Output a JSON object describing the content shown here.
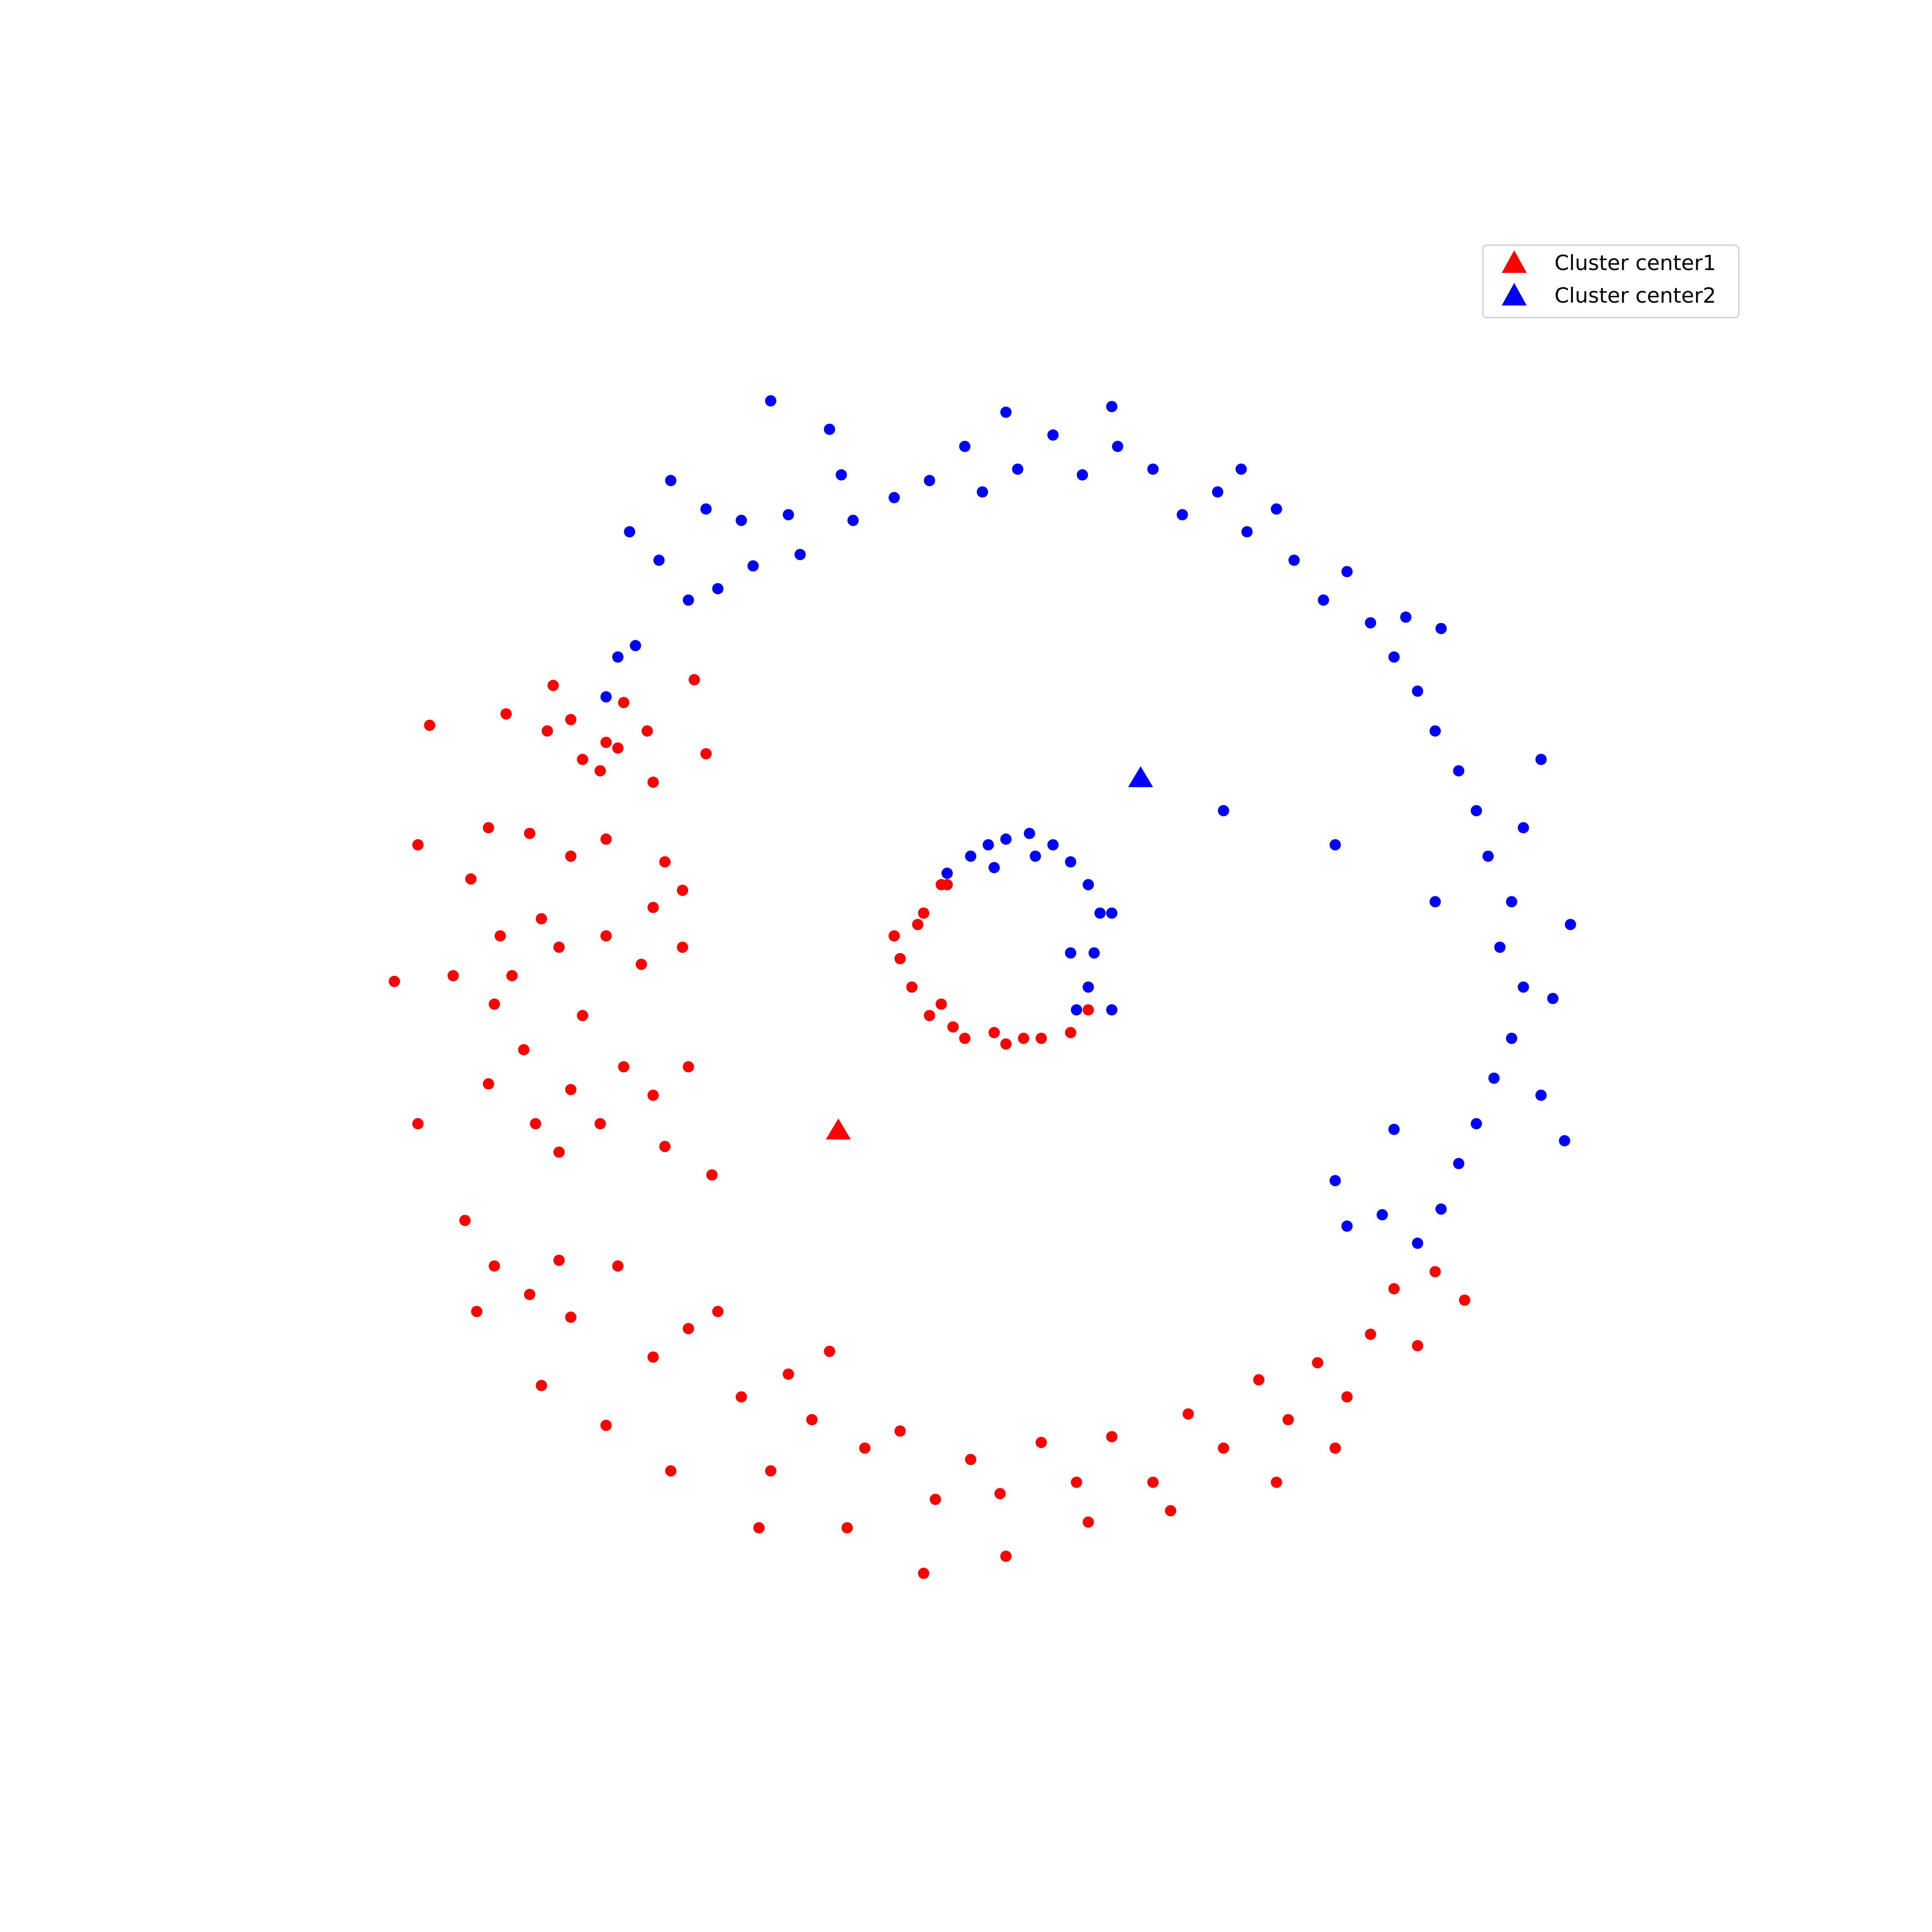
{
  "chart_data": {
    "type": "scatter",
    "title": "",
    "xlabel": "",
    "ylabel": "",
    "axes_visible": false,
    "grid": false,
    "legend_position": "top-right",
    "xlim": [
      -1.28,
      1.28
    ],
    "ylim": [
      -1.28,
      1.28
    ],
    "colors": {
      "cluster1": "#ff0000",
      "cluster2": "#0000ff"
    },
    "legend": [
      {
        "label": "Cluster center1",
        "color": "#ff0000",
        "marker": "triangle"
      },
      {
        "label": "Cluster center2",
        "color": "#0000ff",
        "marker": "triangle"
      }
    ],
    "centers": [
      {
        "name": "Cluster center1",
        "x": -0.265,
        "y": -0.283,
        "color": "#ff0000"
      },
      {
        "name": "Cluster center2",
        "x": 0.249,
        "y": 0.336,
        "color": "#0000ff"
      }
    ],
    "series": [
      {
        "color": "#ff0000",
        "marker": "dot",
        "points": [
          [
            -0.83,
            0.45
          ],
          [
            -0.75,
            0.5
          ],
          [
            -0.76,
            0.42
          ],
          [
            -0.7,
            0.37
          ],
          [
            -0.72,
            0.44
          ],
          [
            -0.66,
            0.4
          ],
          [
            -0.63,
            0.47
          ],
          [
            -0.64,
            0.39
          ],
          [
            -0.67,
            0.35
          ],
          [
            -0.58,
            0.33
          ],
          [
            -0.59,
            0.42
          ],
          [
            -0.51,
            0.51
          ],
          [
            -0.49,
            0.38
          ],
          [
            -0.86,
            0.25
          ],
          [
            -0.79,
            0.24
          ],
          [
            -0.72,
            0.2
          ],
          [
            -0.66,
            0.23
          ],
          [
            -0.56,
            0.19
          ],
          [
            -0.53,
            0.14
          ],
          [
            -0.58,
            0.11
          ],
          [
            -0.89,
            0.16
          ],
          [
            -0.84,
            0.06
          ],
          [
            -0.77,
            0.09
          ],
          [
            -0.82,
            -0.01
          ],
          [
            -0.74,
            0.04
          ],
          [
            -0.7,
            -0.08
          ],
          [
            -0.66,
            0.06
          ],
          [
            -0.6,
            0.01
          ],
          [
            -0.53,
            0.04
          ],
          [
            -0.92,
            -0.01
          ],
          [
            -0.85,
            -0.06
          ],
          [
            -0.8,
            -0.14
          ],
          [
            -0.86,
            -0.2
          ],
          [
            -0.78,
            -0.27
          ],
          [
            -0.72,
            -0.21
          ],
          [
            -0.74,
            -0.32
          ],
          [
            -0.67,
            -0.27
          ],
          [
            -0.63,
            -0.17
          ],
          [
            -0.58,
            -0.22
          ],
          [
            -0.56,
            -0.31
          ],
          [
            -0.52,
            -0.17
          ],
          [
            -0.48,
            -0.36
          ],
          [
            -0.9,
            -0.44
          ],
          [
            -0.85,
            -0.52
          ],
          [
            -0.79,
            -0.57
          ],
          [
            -0.74,
            -0.51
          ],
          [
            -0.72,
            -0.61
          ],
          [
            -0.64,
            -0.52
          ],
          [
            -0.58,
            -0.68
          ],
          [
            -0.52,
            -0.63
          ],
          [
            -0.47,
            -0.6
          ],
          [
            -0.43,
            -0.75
          ],
          [
            -0.38,
            -0.88
          ],
          [
            -0.35,
            -0.71
          ],
          [
            -0.31,
            -0.79
          ],
          [
            -0.28,
            -0.67
          ],
          [
            -0.22,
            -0.84
          ],
          [
            -0.16,
            -0.81
          ],
          [
            -0.1,
            -0.93
          ],
          [
            -0.04,
            -0.86
          ],
          [
            0.01,
            -0.92
          ],
          [
            0.08,
            -0.83
          ],
          [
            0.14,
            -0.9
          ],
          [
            0.2,
            -0.82
          ],
          [
            0.27,
            -0.9
          ],
          [
            0.33,
            -0.78
          ],
          [
            0.39,
            -0.84
          ],
          [
            0.45,
            -0.72
          ],
          [
            0.5,
            -0.79
          ],
          [
            0.55,
            -0.69
          ],
          [
            0.6,
            -0.75
          ],
          [
            0.64,
            -0.64
          ],
          [
            0.68,
            -0.56
          ],
          [
            0.72,
            -0.66
          ],
          [
            0.75,
            -0.53
          ],
          [
            0.8,
            -0.58
          ],
          [
            0.58,
            -0.84
          ],
          [
            0.48,
            -0.9
          ],
          [
            0.3,
            -0.95
          ],
          [
            0.16,
            -0.97
          ],
          [
            0.02,
            -1.03
          ],
          [
            -0.12,
            -1.06
          ],
          [
            -0.25,
            -0.98
          ],
          [
            -0.4,
            -0.98
          ],
          [
            -0.55,
            -0.88
          ],
          [
            -0.66,
            -0.8
          ],
          [
            -0.77,
            -0.73
          ],
          [
            -0.88,
            -0.6
          ],
          [
            -0.98,
            -0.27
          ],
          [
            -1.02,
            -0.02
          ],
          [
            -0.98,
            0.22
          ],
          [
            -0.96,
            0.43
          ],
          [
            -0.08,
            0.15
          ],
          [
            -0.13,
            0.08
          ],
          [
            -0.16,
            0.02
          ],
          [
            -0.14,
            -0.03
          ],
          [
            -0.11,
            -0.08
          ],
          [
            -0.05,
            -0.12
          ],
          [
            0.02,
            -0.13
          ],
          [
            0.08,
            -0.12
          ],
          [
            0.13,
            -0.11
          ],
          [
            0.16,
            -0.07
          ],
          [
            -0.17,
            0.06
          ],
          [
            -0.12,
            0.1
          ],
          [
            -0.09,
            0.15
          ],
          [
            -0.09,
            -0.06
          ],
          [
            -0.07,
            -0.1
          ],
          [
            0.0,
            -0.11
          ],
          [
            0.05,
            -0.12
          ]
        ]
      },
      {
        "color": "#0000ff",
        "marker": "dot",
        "points": [
          [
            -0.62,
            0.77
          ],
          [
            -0.55,
            0.86
          ],
          [
            -0.49,
            0.81
          ],
          [
            -0.43,
            0.79
          ],
          [
            -0.41,
            0.71
          ],
          [
            -0.47,
            0.67
          ],
          [
            -0.52,
            0.65
          ],
          [
            -0.57,
            0.72
          ],
          [
            -0.35,
            0.8
          ],
          [
            -0.33,
            0.73
          ],
          [
            -0.26,
            0.87
          ],
          [
            -0.24,
            0.79
          ],
          [
            -0.17,
            0.83
          ],
          [
            -0.11,
            0.86
          ],
          [
            -0.05,
            0.92
          ],
          [
            -0.02,
            0.84
          ],
          [
            0.04,
            0.88
          ],
          [
            0.1,
            0.94
          ],
          [
            0.15,
            0.87
          ],
          [
            0.21,
            0.92
          ],
          [
            0.27,
            0.88
          ],
          [
            0.32,
            0.8
          ],
          [
            0.38,
            0.84
          ],
          [
            0.43,
            0.77
          ],
          [
            0.48,
            0.81
          ],
          [
            0.51,
            0.72
          ],
          [
            0.56,
            0.65
          ],
          [
            0.6,
            0.7
          ],
          [
            0.64,
            0.61
          ],
          [
            0.68,
            0.55
          ],
          [
            0.72,
            0.49
          ],
          [
            0.75,
            0.42
          ],
          [
            0.79,
            0.35
          ],
          [
            0.82,
            0.28
          ],
          [
            0.84,
            0.2
          ],
          [
            0.88,
            0.12
          ],
          [
            0.86,
            0.04
          ],
          [
            0.9,
            -0.03
          ],
          [
            0.88,
            -0.12
          ],
          [
            0.85,
            -0.19
          ],
          [
            0.82,
            -0.27
          ],
          [
            0.79,
            -0.34
          ],
          [
            0.76,
            -0.42
          ],
          [
            0.72,
            -0.48
          ],
          [
            0.98,
            0.08
          ],
          [
            0.95,
            -0.05
          ],
          [
            0.93,
            -0.22
          ],
          [
            0.97,
            -0.3
          ],
          [
            0.66,
            -0.43
          ],
          [
            0.6,
            -0.45
          ],
          [
            0.58,
            -0.37
          ],
          [
            0.9,
            0.25
          ],
          [
            0.93,
            0.37
          ],
          [
            -0.38,
            1.0
          ],
          [
            -0.28,
            0.95
          ],
          [
            0.02,
            0.98
          ],
          [
            0.2,
            0.99
          ],
          [
            0.42,
            0.88
          ],
          [
            0.7,
            0.62
          ],
          [
            0.76,
            0.6
          ],
          [
            -0.61,
            0.57
          ],
          [
            -0.64,
            0.55
          ],
          [
            -0.66,
            0.48
          ],
          [
            0.39,
            0.28
          ],
          [
            0.58,
            0.22
          ],
          [
            0.75,
            0.12
          ],
          [
            0.68,
            -0.28
          ],
          [
            -0.08,
            0.17
          ],
          [
            -0.04,
            0.2
          ],
          [
            -0.01,
            0.22
          ],
          [
            0.02,
            0.23
          ],
          [
            0.06,
            0.24
          ],
          [
            0.1,
            0.22
          ],
          [
            0.13,
            0.19
          ],
          [
            0.16,
            0.15
          ],
          [
            0.18,
            0.1
          ],
          [
            0.17,
            0.03
          ],
          [
            0.16,
            -0.03
          ],
          [
            0.14,
            -0.07
          ],
          [
            0.2,
            -0.07
          ],
          [
            0.2,
            0.1
          ],
          [
            0.13,
            0.03
          ],
          [
            0.0,
            0.18
          ],
          [
            0.07,
            0.2
          ]
        ]
      }
    ]
  }
}
